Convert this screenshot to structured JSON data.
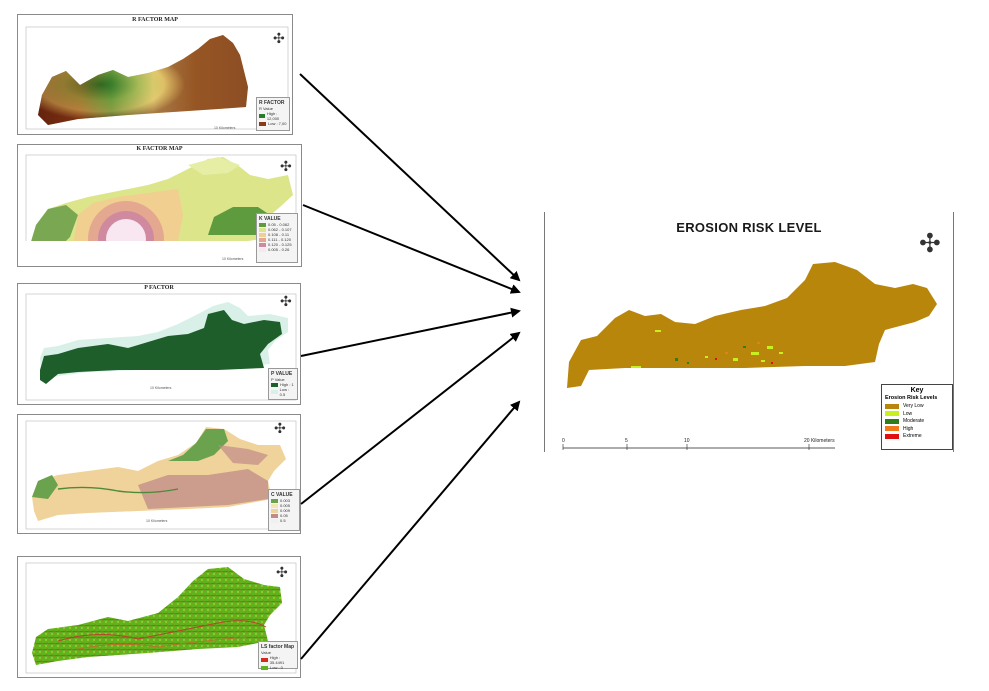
{
  "maps": {
    "r_factor": {
      "title": "R FACTOR MAP",
      "legend_title": "R FACTOR",
      "legend_sub": "R Value",
      "legend_high": "High : 12,000",
      "legend_low": "Low : 7,00",
      "scale": "10 Kilometers"
    },
    "k_factor": {
      "title": "K FACTOR MAP",
      "legend_title": "K VALUE",
      "legend_rows": [
        "0.05 - 0.062",
        "0.062 - 0.107",
        "0.108 - 0.11",
        "0.111 - 0.120",
        "0.120 - 0.125",
        "0.005 - 0.26"
      ],
      "scale": "10 Kilometers"
    },
    "p_factor": {
      "title": "P FACTOR",
      "legend_title": "P VALUE",
      "legend_sub": "P Value",
      "legend_high": "High : 1",
      "legend_low": "Low : 0.5",
      "scale": "10 Kilometers"
    },
    "c_factor": {
      "legend_title": "C VALUE",
      "legend_rows": [
        "0.003",
        "0.005",
        "0.009",
        "0.05",
        "0.5"
      ],
      "scale": "10 Kilometers"
    },
    "ls_factor": {
      "legend_title": "LS factor Map",
      "legend_sub": "Value",
      "legend_high": "High : 35.4491",
      "legend_low": "Low : 0"
    }
  },
  "result": {
    "title": "EROSION RISK LEVEL",
    "key_title": "Key",
    "key_subtitle": "Erosion Risk Levels",
    "levels": [
      {
        "label": "Very Low",
        "color": "#b8860b"
      },
      {
        "label": "Low",
        "color": "#c8f01e"
      },
      {
        "label": "Moderate",
        "color": "#2e7d1a"
      },
      {
        "label": "High",
        "color": "#f07a1a"
      },
      {
        "label": "Extreme",
        "color": "#e01010"
      }
    ],
    "scale_0": "0",
    "scale_5": "5",
    "scale_10": "10",
    "scale_20": "20 Kilometers"
  }
}
